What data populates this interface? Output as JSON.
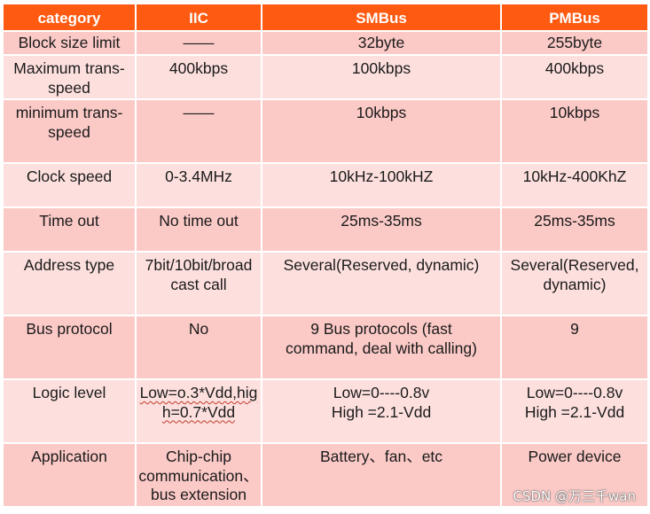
{
  "table": {
    "headers": [
      "category",
      "IIC",
      "SMBus",
      "PMBus"
    ],
    "rows": [
      {
        "cells": [
          "Block size limit",
          "——",
          "32byte",
          "255byte"
        ]
      },
      {
        "cells": [
          "Maximum trans-speed",
          "400kbps",
          "100kbps",
          "400kbps"
        ]
      },
      {
        "cells": [
          "minimum trans-speed",
          "——",
          "10kbps",
          "10kbps"
        ]
      },
      {
        "cells": [
          "Clock speed",
          "0-3.4MHz",
          "10kHz-100kHZ",
          "10kHz-400KhZ"
        ]
      },
      {
        "cells": [
          "Time out",
          "No time out",
          "25ms-35ms",
          "25ms-35ms"
        ]
      },
      {
        "cells": [
          "Address type",
          "7bit/10bit/broad cast call",
          "Several(Reserved, dynamic)",
          "Several(Reserved, dynamic)"
        ]
      },
      {
        "cells": [
          "Bus protocol",
          "No",
          "9 Bus protocols (fast command, deal with calling)",
          "9"
        ]
      },
      {
        "cells": [
          "Logic level",
          "Low=o.3*Vdd,high=0.7*Vdd",
          "Low=0----0.8v High =2.1-Vdd",
          "Low=0----0.8v High =2.1-Vdd"
        ]
      },
      {
        "cells": [
          "Application",
          "Chip-chip communication、bus extension",
          "Battery、fan、etc",
          "Power device"
        ]
      }
    ]
  },
  "colors": {
    "header_bg": "#ff5a12",
    "row_light": "#fde0de",
    "row_dark": "#fbcac7"
  },
  "watermark": "CSDN @万三千wan"
}
